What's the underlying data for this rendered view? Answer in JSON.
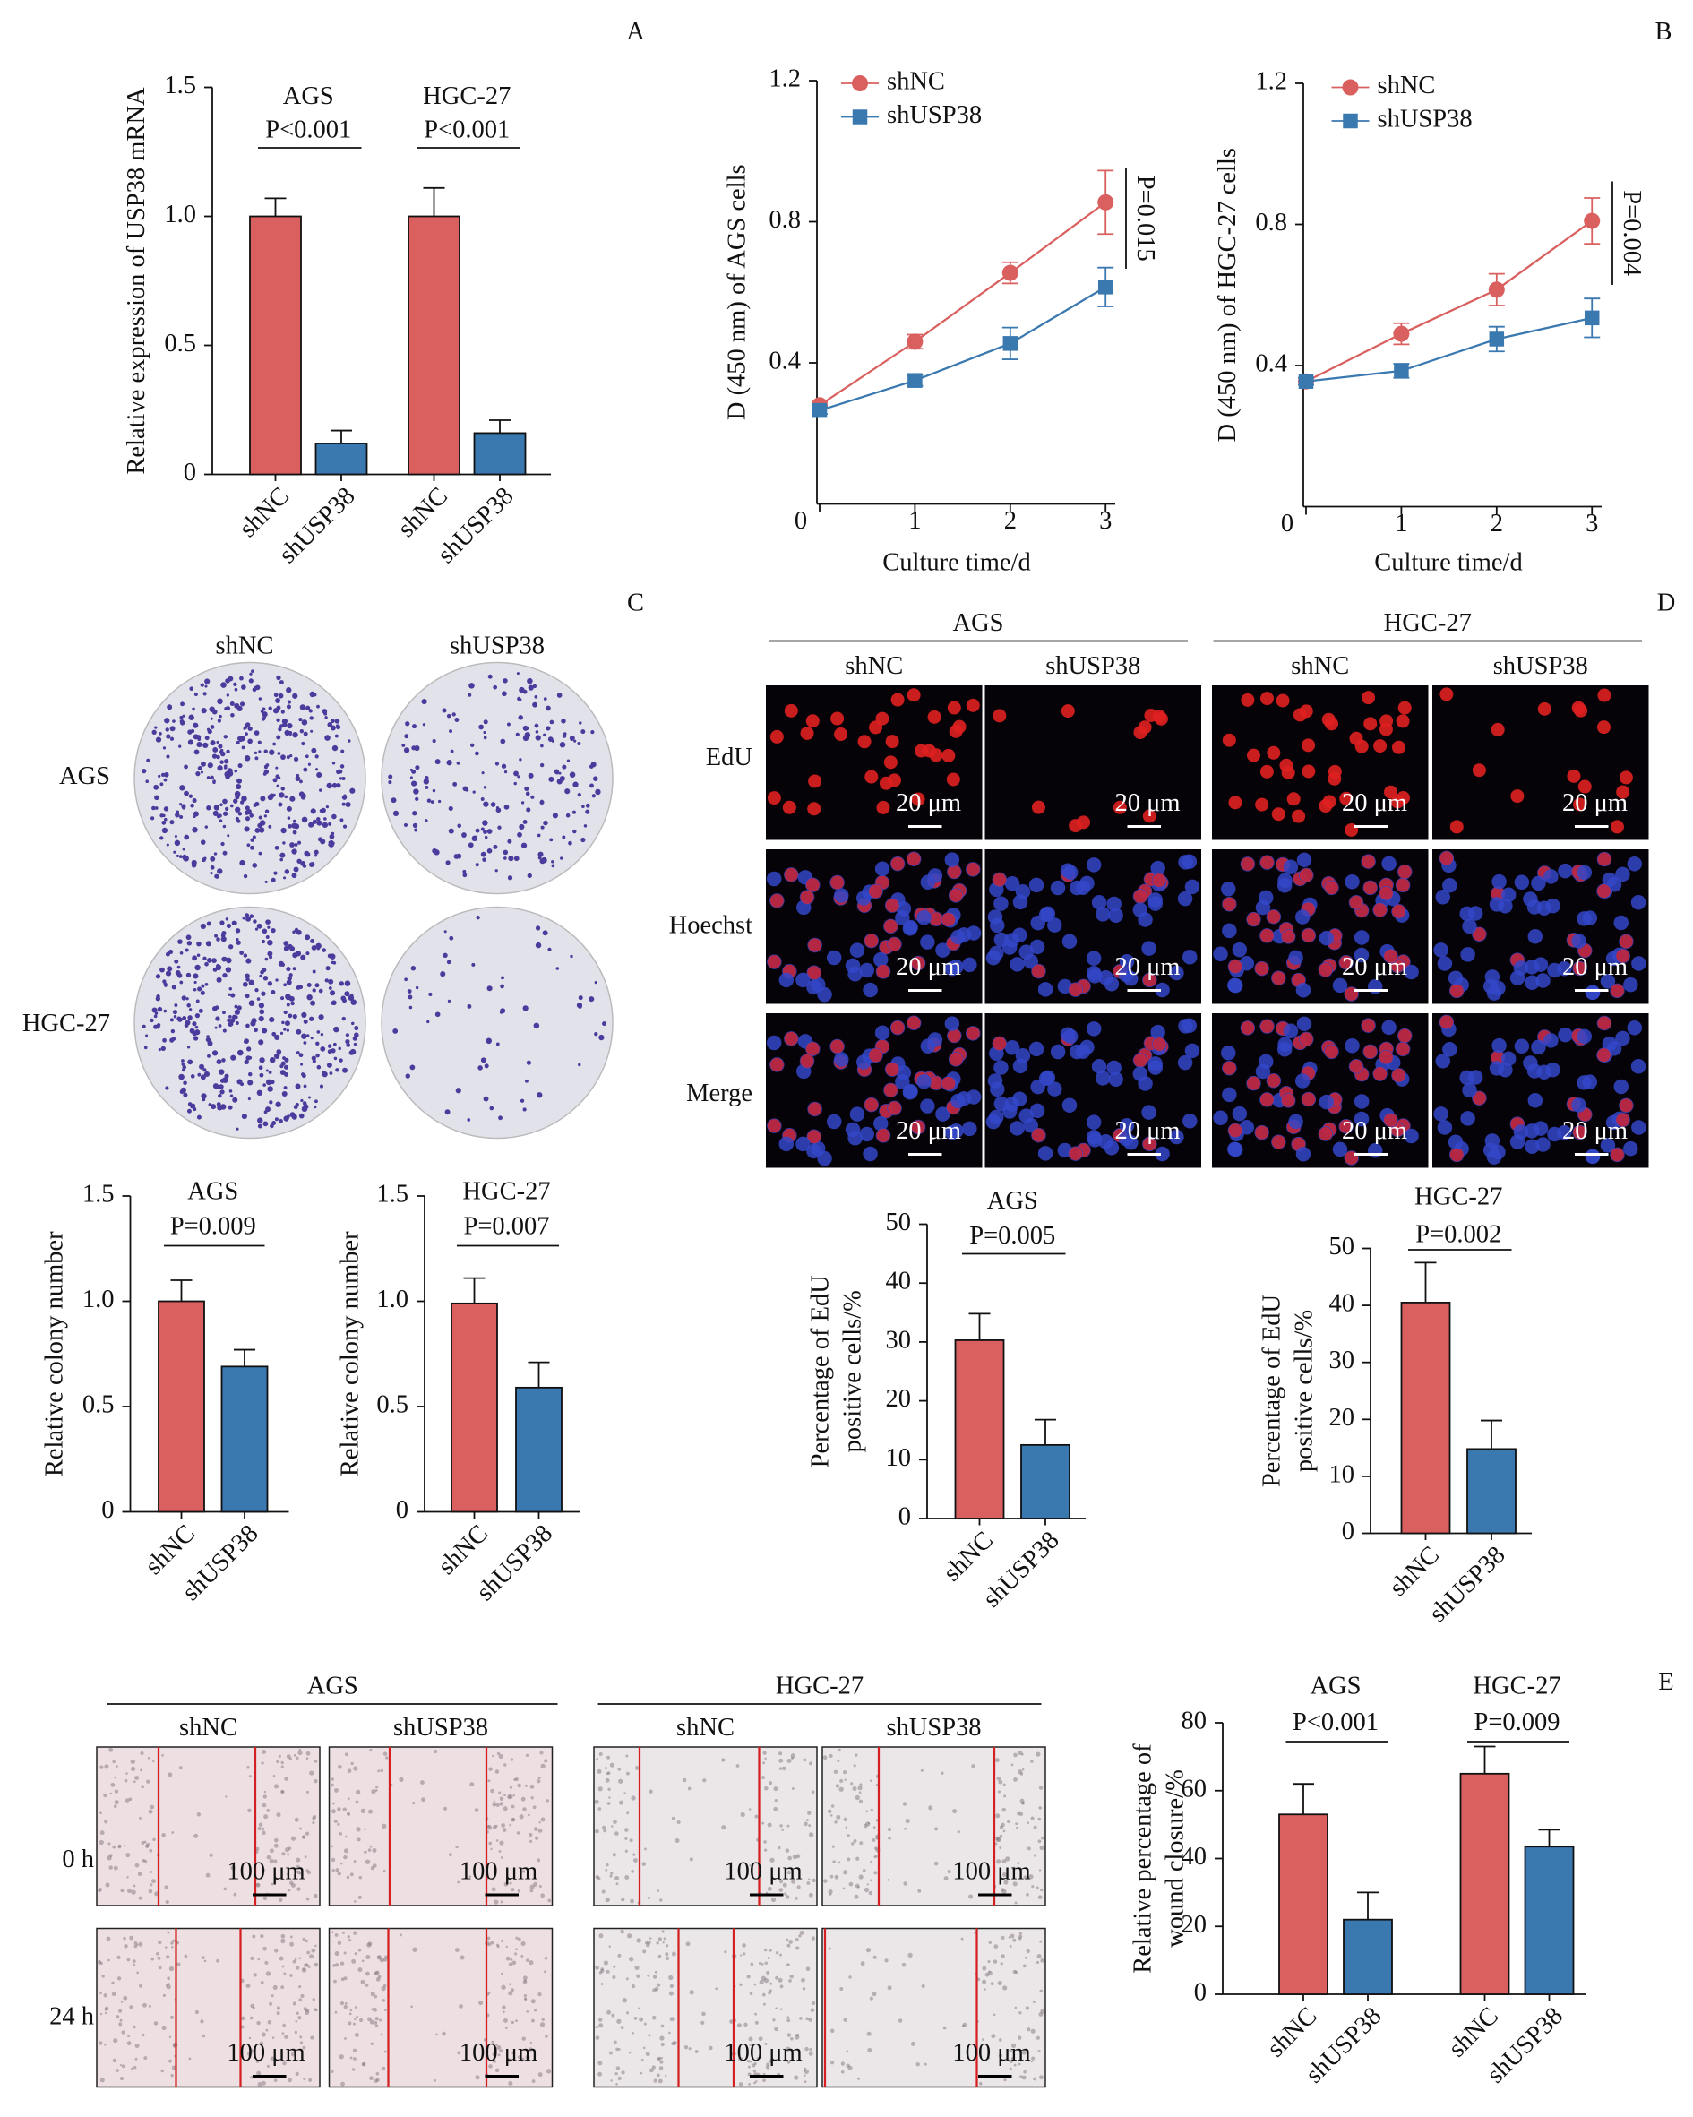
{
  "panel_labels": [
    "A",
    "B",
    "C",
    "D",
    "E"
  ],
  "colony": {
    "columns": [
      "shNC",
      "shUSP38"
    ],
    "rows": [
      "AGS",
      "HGC-27"
    ]
  },
  "edu": {
    "cell_lines": [
      "AGS",
      "HGC-27"
    ],
    "columns": [
      "shNC",
      "shUSP38"
    ],
    "rows": [
      "EdU",
      "Hoechst",
      "Merge"
    ],
    "scale_bar": "20 μm"
  },
  "wound": {
    "cell_lines": [
      "AGS",
      "HGC-27"
    ],
    "columns": [
      "shNC",
      "shUSP38"
    ],
    "rows": [
      "0 h",
      "24 h"
    ],
    "scale_bar": "100 μm"
  },
  "chart_data": [
    {
      "type": "bar",
      "ylabel": "Relative expression of USP38 mRNA",
      "categories": [
        "shNC",
        "shUSP38",
        "shNC",
        "shUSP38"
      ],
      "values": [
        1.0,
        0.12,
        1.0,
        0.16
      ],
      "errors": [
        0.07,
        0.05,
        0.11,
        0.05
      ],
      "colors": [
        "#d9605f",
        "#3a78b0",
        "#d9605f",
        "#3a78b0"
      ],
      "groups": [
        {
          "label": "AGS",
          "p_value": "P<0.001"
        },
        {
          "label": "HGC-27",
          "p_value": "P<0.001"
        }
      ],
      "ylim": [
        0,
        1.5
      ],
      "yticks": [
        0,
        0.5,
        {
          "value": 1,
          "label": "1.0"
        },
        1.5
      ]
    },
    {
      "type": "line",
      "ylabel": "D (450 nm) of AGS cells",
      "xlabel": "Culture time/d",
      "x": [
        0,
        1,
        2,
        3
      ],
      "series": [
        {
          "name": "shNC",
          "color": "#d9605f",
          "marker": "circle",
          "values": [
            0.28,
            0.46,
            0.655,
            0.855
          ],
          "errors": [
            0.01,
            0.02,
            0.03,
            0.09
          ]
        },
        {
          "name": "shUSP38",
          "color": "#3a78b0",
          "marker": "square",
          "values": [
            0.265,
            0.35,
            0.455,
            0.615
          ],
          "errors": [
            0.01,
            0.015,
            0.045,
            0.055
          ]
        }
      ],
      "annotation": "P=0.015",
      "legend": "upper left",
      "xlim": [
        0,
        3.2
      ],
      "xticks": [
        0,
        1,
        2,
        3
      ],
      "ylim": [
        0,
        1.2
      ],
      "yticks": [
        0.4,
        0.8,
        1.2
      ]
    },
    {
      "type": "line",
      "ylabel": "D (450 nm) of HGC-27 cells",
      "xlabel": "Culture time/d",
      "x": [
        0,
        1,
        2,
        3
      ],
      "series": [
        {
          "name": "shNC",
          "color": "#d9605f",
          "marker": "circle",
          "values": [
            0.355,
            0.49,
            0.615,
            0.81
          ],
          "errors": [
            0.01,
            0.03,
            0.045,
            0.065
          ]
        },
        {
          "name": "shUSP38",
          "color": "#3a78b0",
          "marker": "square",
          "values": [
            0.355,
            0.385,
            0.475,
            0.535
          ],
          "errors": [
            0.01,
            0.02,
            0.035,
            0.055
          ]
        }
      ],
      "annotation": "P=0.004",
      "legend": "upper left",
      "xlim": [
        0,
        3.2
      ],
      "xticks": [
        0,
        1,
        2,
        3
      ],
      "ylim": [
        0,
        1.2
      ],
      "yticks": [
        0.4,
        0.8,
        1.2
      ]
    },
    {
      "type": "bar",
      "ylabel": "Relative colony number",
      "categories": [
        "shNC",
        "shUSP38"
      ],
      "values": [
        1.0,
        0.69
      ],
      "errors": [
        0.1,
        0.08
      ],
      "colors": [
        "#d9605f",
        "#3a78b0"
      ],
      "groups": [
        {
          "label": "AGS",
          "p_value": "P=0.009"
        }
      ],
      "ylim": [
        0,
        1.5
      ],
      "yticks": [
        0,
        0.5,
        {
          "value": 1,
          "label": "1.0"
        },
        1.5
      ]
    },
    {
      "type": "bar",
      "ylabel": "Relative colony number",
      "categories": [
        "shNC",
        "shUSP38"
      ],
      "values": [
        0.99,
        0.59
      ],
      "errors": [
        0.12,
        0.12
      ],
      "colors": [
        "#d9605f",
        "#3a78b0"
      ],
      "groups": [
        {
          "label": "HGC-27",
          "p_value": "P=0.007"
        }
      ],
      "ylim": [
        0,
        1.5
      ],
      "yticks": [
        0,
        0.5,
        {
          "value": 1,
          "label": "1.0"
        },
        1.5
      ]
    },
    {
      "type": "bar",
      "ylabel": [
        "Percentage of EdU",
        "positive cells/%"
      ],
      "categories": [
        "shNC",
        "shUSP38"
      ],
      "values": [
        30.3,
        12.5
      ],
      "errors": [
        4.5,
        4.3
      ],
      "colors": [
        "#d9605f",
        "#3a78b0"
      ],
      "groups": [
        {
          "label": "AGS",
          "p_value": "P=0.005"
        }
      ],
      "ylim": [
        0,
        50
      ],
      "yticks": [
        0,
        10,
        20,
        30,
        40,
        50
      ]
    },
    {
      "type": "bar",
      "ylabel": [
        "Percentage of EdU",
        "positive cells/%"
      ],
      "categories": [
        "shNC",
        "shUSP38"
      ],
      "values": [
        40.5,
        14.8
      ],
      "errors": [
        7,
        5
      ],
      "colors": [
        "#d9605f",
        "#3a78b0"
      ],
      "groups": [
        {
          "label": "HGC-27",
          "p_value": "P=0.002"
        }
      ],
      "ylim": [
        0,
        50
      ],
      "yticks": [
        0,
        10,
        20,
        30,
        40,
        50
      ]
    },
    {
      "type": "bar",
      "ylabel": [
        "Relative percentage of",
        "wound closure/%"
      ],
      "categories": [
        "shNC",
        "shUSP38",
        "shNC",
        "shUSP38"
      ],
      "values": [
        53,
        22,
        65,
        43.5
      ],
      "errors": [
        9,
        8,
        8,
        5
      ],
      "colors": [
        "#d9605f",
        "#3a78b0",
        "#d9605f",
        "#3a78b0"
      ],
      "groups": [
        {
          "label": "AGS",
          "p_value": "P<0.001"
        },
        {
          "label": "HGC-27",
          "p_value": "P=0.009"
        }
      ],
      "ylim": [
        0,
        80
      ],
      "yticks": [
        0,
        20,
        40,
        60,
        80
      ]
    }
  ]
}
